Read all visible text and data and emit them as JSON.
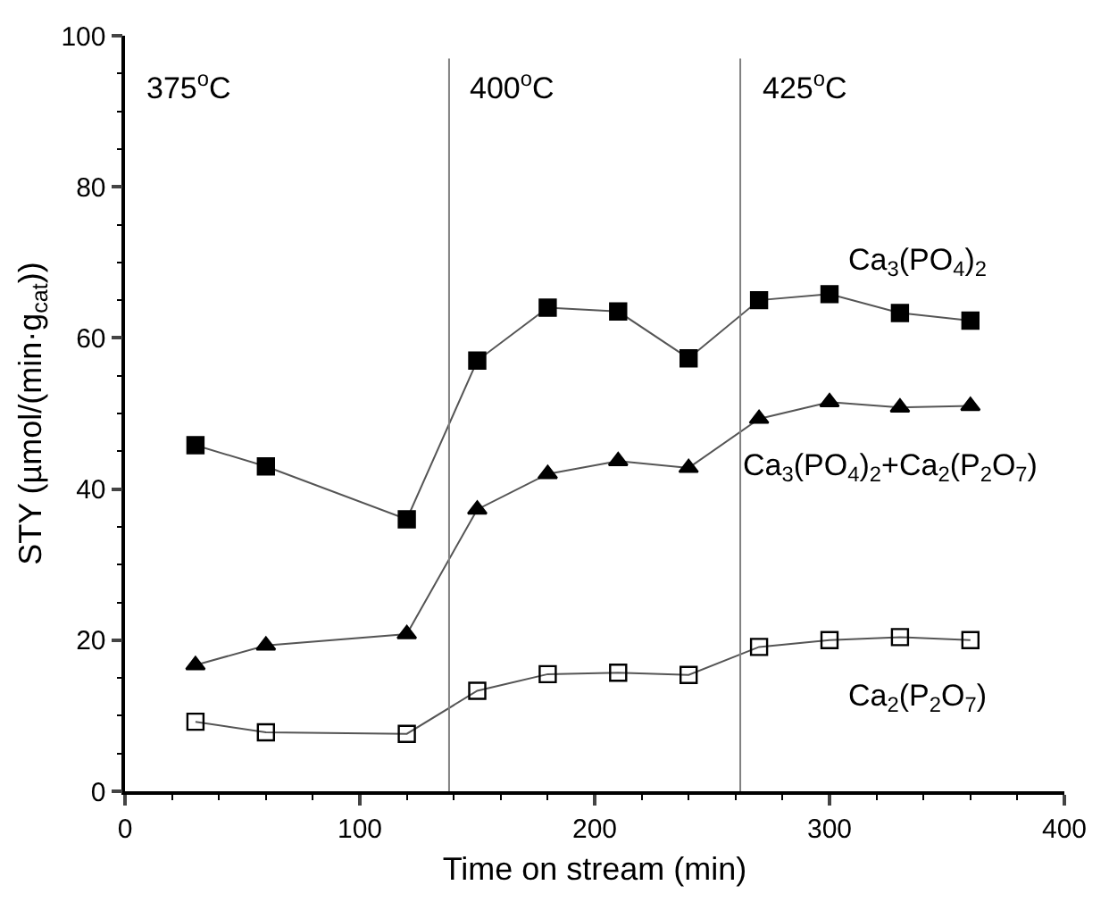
{
  "chart_data": {
    "type": "line",
    "xlabel": "Time on stream (min)",
    "ylabel": "STY (µmol/(min·g$_{cat}$))",
    "x": [
      30,
      60,
      120,
      150,
      180,
      210,
      240,
      270,
      300,
      330,
      360
    ],
    "series": [
      {
        "name": "Ca$_{3}$(PO$_{4}$)$_{2}$",
        "color": "#000000",
        "marker": "square",
        "values": [
          45.8,
          43,
          36,
          57,
          64,
          63.5,
          57.3,
          65,
          65.8,
          63.3,
          62.3
        ]
      },
      {
        "name": "Ca$_{3}$(PO$_{4}$)$_{2}$+Ca$_{2}$(P$_{2}$O$_{7}$)",
        "color": "#000000",
        "marker": "triangle",
        "values": [
          16.7,
          19.3,
          20.8,
          37.3,
          42,
          43.7,
          42.8,
          49.3,
          51.5,
          50.8,
          51
        ]
      },
      {
        "name": "Ca$_{2}$(P$_{2}$O$_{7}$)",
        "color": "#000000",
        "marker": "square-open",
        "values": [
          9.2,
          7.8,
          7.6,
          13.3,
          15.5,
          15.7,
          15.4,
          19.1,
          20,
          20.4,
          20
        ]
      }
    ],
    "ref_lines": [
      {
        "axis": "x",
        "value": 138,
        "color": "#808080"
      },
      {
        "axis": "x",
        "value": 262,
        "color": "#808080"
      }
    ],
    "annotations": [
      "375$^{o}$C",
      "400$^{o}$C",
      "425$^{o}$C"
    ],
    "xlim": [
      0,
      400
    ],
    "xticks": [
      0,
      100,
      200,
      300,
      400
    ],
    "ylim": [
      0,
      100
    ],
    "yticks": [
      0,
      20,
      40,
      60,
      80,
      100
    ],
    "legend": false
  }
}
